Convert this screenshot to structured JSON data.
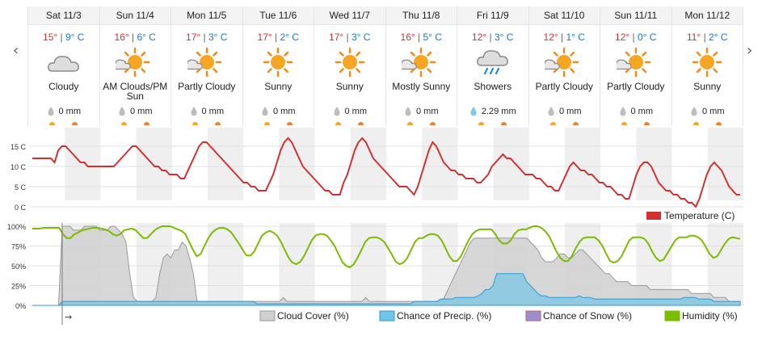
{
  "nav": {
    "prev": "‹",
    "next": "›"
  },
  "forecast": [
    {
      "day": "Sat 11/3",
      "high": "15°",
      "low": "9° C",
      "icon": "cloud-icon",
      "condition": "Cloudy",
      "precip": "0 mm",
      "rain": false
    },
    {
      "day": "Sun 11/4",
      "high": "16°",
      "low": "6° C",
      "icon": "sun-cloud-icon",
      "condition": "AM Clouds/PM Sun",
      "precip": "0 mm",
      "rain": false
    },
    {
      "day": "Mon 11/5",
      "high": "17°",
      "low": "3° C",
      "icon": "sun-cloud-icon",
      "condition": "Partly Cloudy",
      "precip": "0 mm",
      "rain": false
    },
    {
      "day": "Tue 11/6",
      "high": "17°",
      "low": "2° C",
      "icon": "sun-icon",
      "condition": "Sunny",
      "precip": "0 mm",
      "rain": false
    },
    {
      "day": "Wed 11/7",
      "high": "17°",
      "low": "3° C",
      "icon": "sun-icon",
      "condition": "Sunny",
      "precip": "0 mm",
      "rain": false
    },
    {
      "day": "Thu 11/8",
      "high": "16°",
      "low": "5° C",
      "icon": "sun-cloud-icon",
      "condition": "Mostly Sunny",
      "precip": "0 mm",
      "rain": false
    },
    {
      "day": "Fri 11/9",
      "high": "12°",
      "low": "3° C",
      "icon": "rain-cloud-icon",
      "condition": "Showers",
      "precip": "2.29 mm",
      "rain": true
    },
    {
      "day": "Sat 11/10",
      "high": "12°",
      "low": "1° C",
      "icon": "sun-cloud-icon",
      "condition": "Partly Cloudy",
      "precip": "0 mm",
      "rain": false
    },
    {
      "day": "Sun 11/11",
      "high": "12°",
      "low": "0° C",
      "icon": "sun-cloud-icon",
      "condition": "Partly Cloudy",
      "precip": "0 mm",
      "rain": false
    },
    {
      "day": "Mon 11/12",
      "high": "11°",
      "low": "2° C",
      "icon": "sun-icon",
      "condition": "Sunny",
      "precip": "0 mm",
      "rain": false
    }
  ],
  "colors": {
    "temp": "#d32f2f",
    "humidity": "#7dbb00",
    "cloud": "#cccccc",
    "precip": "#73c5e6",
    "snow": "#9a8fc8"
  },
  "chart_data": [
    {
      "type": "line",
      "yticks": [
        "15 C",
        "10 C",
        "5 C",
        "0 C"
      ],
      "ylim": [
        0,
        18
      ],
      "series": [
        {
          "name": "Temperature (C)",
          "values": [
            12,
            12,
            12,
            12,
            12,
            12,
            11,
            14,
            15,
            15,
            14,
            13,
            12,
            11,
            11,
            10,
            10,
            10,
            10,
            10,
            10,
            10,
            10,
            11,
            12,
            13,
            14,
            15,
            15,
            14,
            13,
            12,
            11,
            10,
            10,
            9,
            9,
            8,
            8,
            8,
            7,
            7,
            9,
            11,
            13,
            15,
            16,
            16,
            15,
            14,
            13,
            12,
            11,
            10,
            9,
            8,
            7,
            6,
            6,
            5,
            5,
            4,
            4,
            4,
            6,
            8,
            11,
            14,
            16,
            17,
            16,
            14,
            12,
            10,
            9,
            8,
            7,
            6,
            5,
            4,
            4,
            3,
            3,
            3,
            6,
            8,
            11,
            14,
            16,
            17,
            16,
            14,
            12,
            11,
            10,
            9,
            8,
            7,
            6,
            5,
            5,
            5,
            4,
            3,
            5,
            8,
            11,
            14,
            16,
            15,
            13,
            11,
            10,
            9,
            9,
            8,
            8,
            7,
            7,
            7,
            6,
            6,
            7,
            8,
            10,
            11,
            12,
            13,
            12,
            12,
            11,
            10,
            9,
            8,
            8,
            8,
            7,
            7,
            6,
            5,
            5,
            4,
            4,
            6,
            8,
            10,
            11,
            10,
            9,
            9,
            8,
            8,
            7,
            6,
            6,
            5,
            5,
            4,
            3,
            3,
            2,
            2,
            5,
            8,
            10,
            11,
            11,
            10,
            8,
            6,
            5,
            4,
            4,
            3,
            3,
            2,
            2,
            1,
            1,
            0,
            2,
            5,
            8,
            10,
            11,
            10,
            9,
            7,
            5,
            4,
            3,
            3
          ]
        }
      ]
    },
    {
      "type": "area",
      "yticks": [
        "100%",
        "75%",
        "50%",
        "25%",
        "0%"
      ],
      "ylim": [
        0,
        100
      ],
      "legend": [
        "Cloud Cover (%)",
        "Chance of Precip. (%)",
        "Chance of Snow (%)",
        "Humidity (%)"
      ],
      "legend_placement": "bottom-right",
      "time_arrow": "→",
      "series": [
        {
          "name": "Cloud Cover (%)",
          "values": [
            0,
            0,
            0,
            0,
            0,
            0,
            0,
            0,
            100,
            100,
            100,
            95,
            95,
            95,
            100,
            100,
            100,
            100,
            95,
            95,
            95,
            100,
            100,
            95,
            90,
            80,
            40,
            10,
            5,
            5,
            5,
            5,
            5,
            10,
            40,
            60,
            65,
            60,
            70,
            70,
            80,
            75,
            60,
            40,
            5,
            5,
            5,
            5,
            5,
            5,
            5,
            5,
            5,
            5,
            5,
            5,
            5,
            5,
            5,
            5,
            5,
            5,
            5,
            5,
            5,
            5,
            5,
            10,
            5,
            5,
            5,
            5,
            5,
            5,
            5,
            5,
            5,
            5,
            5,
            5,
            5,
            5,
            5,
            5,
            5,
            5,
            5,
            5,
            5,
            10,
            5,
            5,
            5,
            5,
            5,
            5,
            5,
            5,
            5,
            5,
            5,
            5,
            5,
            5,
            5,
            5,
            5,
            5,
            5,
            5,
            10,
            20,
            30,
            40,
            50,
            60,
            70,
            80,
            85,
            85,
            85,
            85,
            85,
            85,
            85,
            85,
            85,
            85,
            85,
            85,
            85,
            85,
            85,
            80,
            75,
            70,
            60,
            55,
            55,
            55,
            60,
            65,
            65,
            60,
            60,
            65,
            70,
            70,
            65,
            60,
            55,
            50,
            45,
            40,
            40,
            35,
            30,
            30,
            30,
            30,
            25,
            25,
            25,
            25,
            25,
            20,
            20,
            20,
            20,
            20,
            20,
            20,
            20,
            20,
            20,
            20,
            15,
            15,
            15,
            15,
            15,
            15,
            10,
            10,
            10,
            10,
            5,
            5,
            5,
            5
          ]
        },
        {
          "name": "Chance of Precip. (%)",
          "values": [
            0,
            0,
            0,
            0,
            0,
            0,
            0,
            0,
            5,
            5,
            5,
            5,
            5,
            5,
            5,
            5,
            5,
            5,
            5,
            5,
            5,
            5,
            5,
            5,
            5,
            5,
            5,
            5,
            5,
            5,
            5,
            5,
            5,
            5,
            5,
            5,
            5,
            5,
            5,
            5,
            5,
            5,
            5,
            5,
            5,
            5,
            5,
            5,
            5,
            5,
            5,
            5,
            5,
            5,
            5,
            5,
            5,
            5,
            5,
            5,
            2,
            2,
            2,
            2,
            2,
            2,
            2,
            2,
            2,
            2,
            2,
            2,
            2,
            2,
            2,
            2,
            2,
            2,
            2,
            2,
            2,
            2,
            2,
            2,
            2,
            2,
            2,
            2,
            2,
            2,
            2,
            2,
            2,
            2,
            2,
            2,
            2,
            2,
            2,
            2,
            2,
            2,
            5,
            5,
            5,
            5,
            5,
            5,
            5,
            8,
            8,
            8,
            8,
            10,
            10,
            10,
            10,
            10,
            10,
            12,
            15,
            20,
            20,
            25,
            40,
            40,
            40,
            40,
            40,
            40,
            40,
            40,
            30,
            25,
            20,
            15,
            12,
            12,
            10,
            10,
            10,
            10,
            10,
            10,
            10,
            10,
            12,
            10,
            10,
            10,
            8,
            8,
            8,
            8,
            8,
            8,
            8,
            8,
            8,
            8,
            8,
            8,
            8,
            8,
            8,
            8,
            8,
            8,
            8,
            8,
            8,
            8,
            8,
            8,
            10,
            10,
            10,
            10,
            8,
            8,
            8,
            8,
            5,
            5,
            5,
            5,
            5,
            5,
            5,
            5
          ]
        },
        {
          "name": "Chance of Snow (%)",
          "values": []
        },
        {
          "name": "Humidity (%)",
          "values": [
            97,
            97,
            97,
            98,
            98,
            98,
            98,
            98,
            90,
            85,
            85,
            90,
            92,
            95,
            96,
            97,
            98,
            98,
            97,
            96,
            94,
            90,
            88,
            90,
            95,
            96,
            97,
            95,
            90,
            85,
            85,
            90,
            95,
            98,
            100,
            100,
            100,
            98,
            96,
            94,
            90,
            80,
            70,
            62,
            65,
            75,
            85,
            92,
            96,
            98,
            98,
            96,
            92,
            85,
            78,
            70,
            63,
            63,
            68,
            78,
            88,
            92,
            94,
            92,
            88,
            80,
            70,
            60,
            54,
            52,
            55,
            62,
            72,
            82,
            88,
            90,
            90,
            88,
            82,
            75,
            65,
            55,
            50,
            48,
            52,
            60,
            70,
            80,
            85,
            86,
            86,
            84,
            80,
            72,
            64,
            55,
            52,
            54,
            60,
            70,
            80,
            85,
            85,
            88,
            90,
            90,
            88,
            82,
            72,
            62,
            56,
            56,
            62,
            72,
            82,
            90,
            94,
            96,
            96,
            96,
            96,
            90,
            82,
            78,
            78,
            82,
            90,
            95,
            96,
            96,
            98,
            100,
            100,
            98,
            94,
            88,
            78,
            68,
            60,
            56,
            56,
            62,
            72,
            80,
            85,
            86,
            86,
            86,
            82,
            75,
            65,
            56,
            54,
            56,
            62,
            72,
            82,
            86,
            86,
            86,
            84,
            78,
            68,
            60,
            56,
            58,
            66,
            74,
            82,
            86,
            86,
            86,
            88,
            88,
            86,
            82,
            74,
            65,
            60,
            62,
            70,
            78,
            84,
            86,
            85,
            84
          ]
        }
      ]
    }
  ]
}
